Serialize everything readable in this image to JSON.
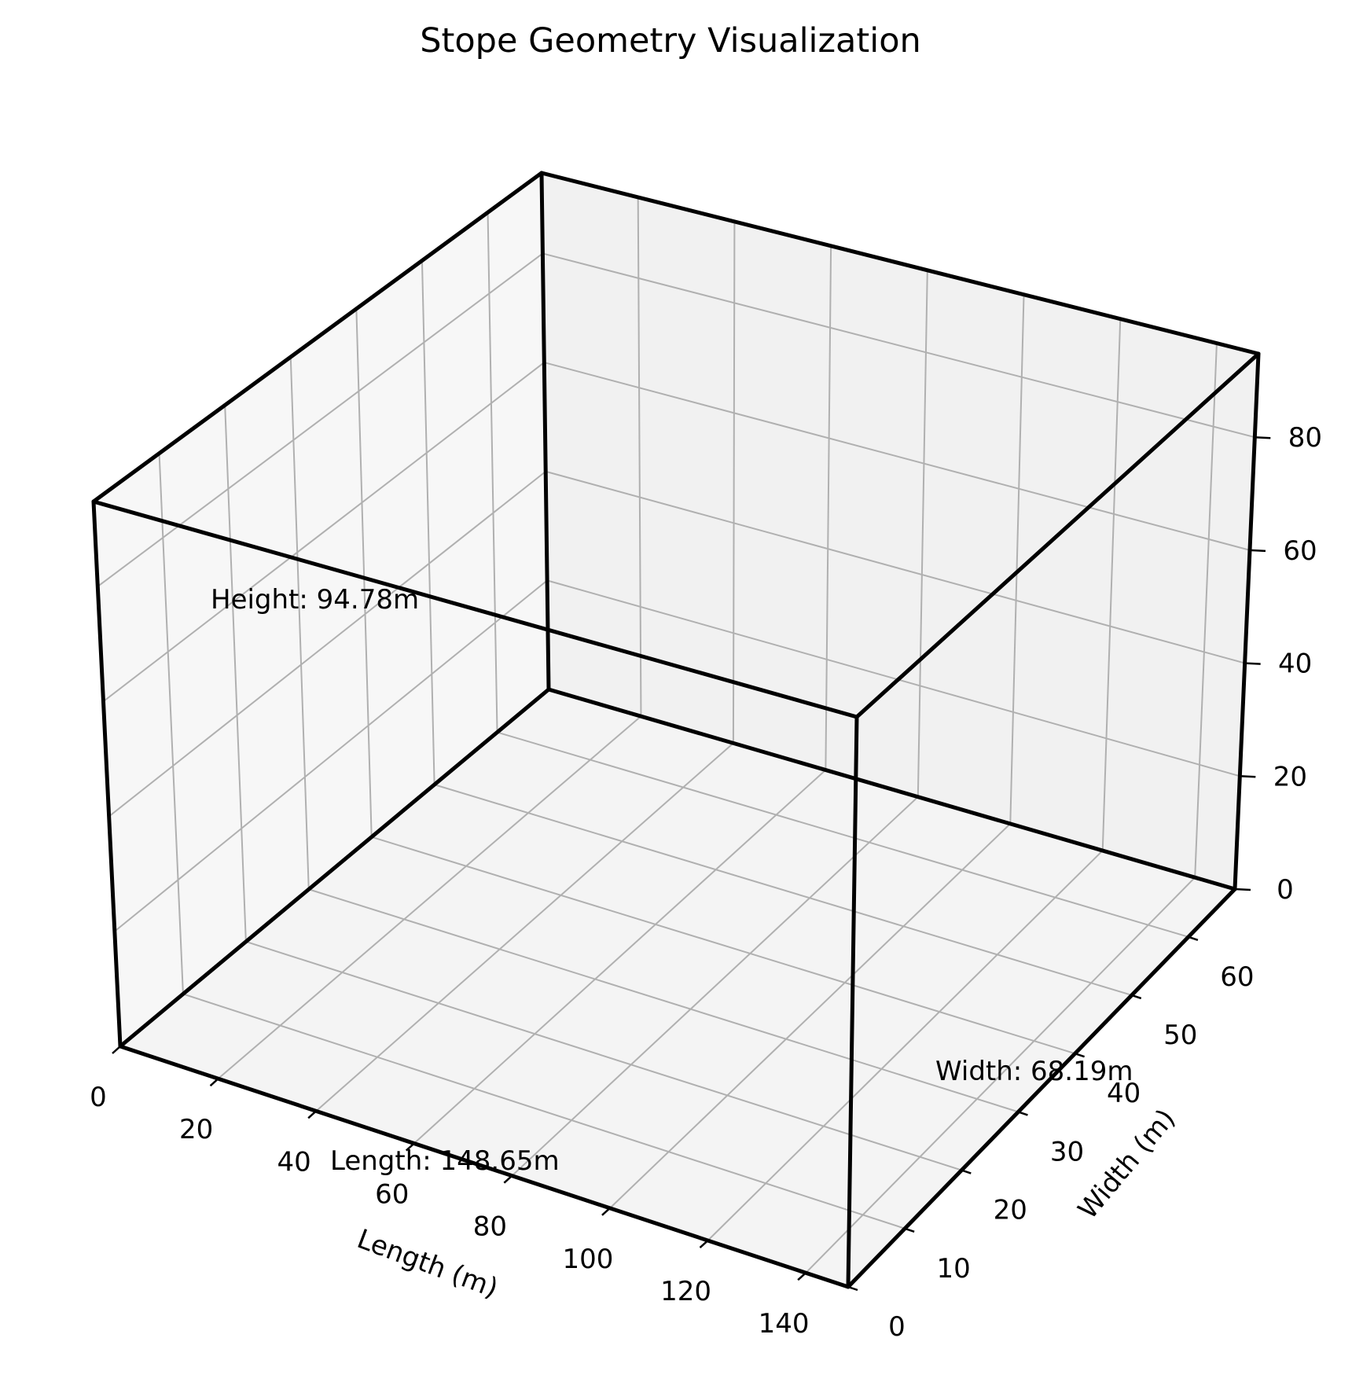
{
  "chart_data": {
    "type": "3d-box",
    "title": "Stope Geometry Visualization",
    "xlabel": "Length (m)",
    "ylabel": "Width (m)",
    "zlabel": "",
    "xlim": [
      0,
      148.65
    ],
    "ylim": [
      0,
      68.19
    ],
    "zlim": [
      0,
      94.78
    ],
    "x_ticks": [
      "0",
      "20",
      "40",
      "60",
      "80",
      "100",
      "120",
      "140"
    ],
    "y_ticks": [
      "0",
      "10",
      "20",
      "30",
      "40",
      "50",
      "60"
    ],
    "z_ticks": [
      "0",
      "20",
      "40",
      "60",
      "80"
    ],
    "box": {
      "length": 148.65,
      "width": 68.19,
      "height": 94.78
    },
    "annotations": [
      "Length: 148.65m",
      "Width: 68.19m",
      "Height: 94.78m"
    ],
    "grid": true,
    "pane_colors": {
      "left": "#f7f7f7",
      "back": "#f1f1f1",
      "floor": "#f4f4f4"
    },
    "edge_color": "#000000",
    "grid_color": "#b0b0b0"
  }
}
